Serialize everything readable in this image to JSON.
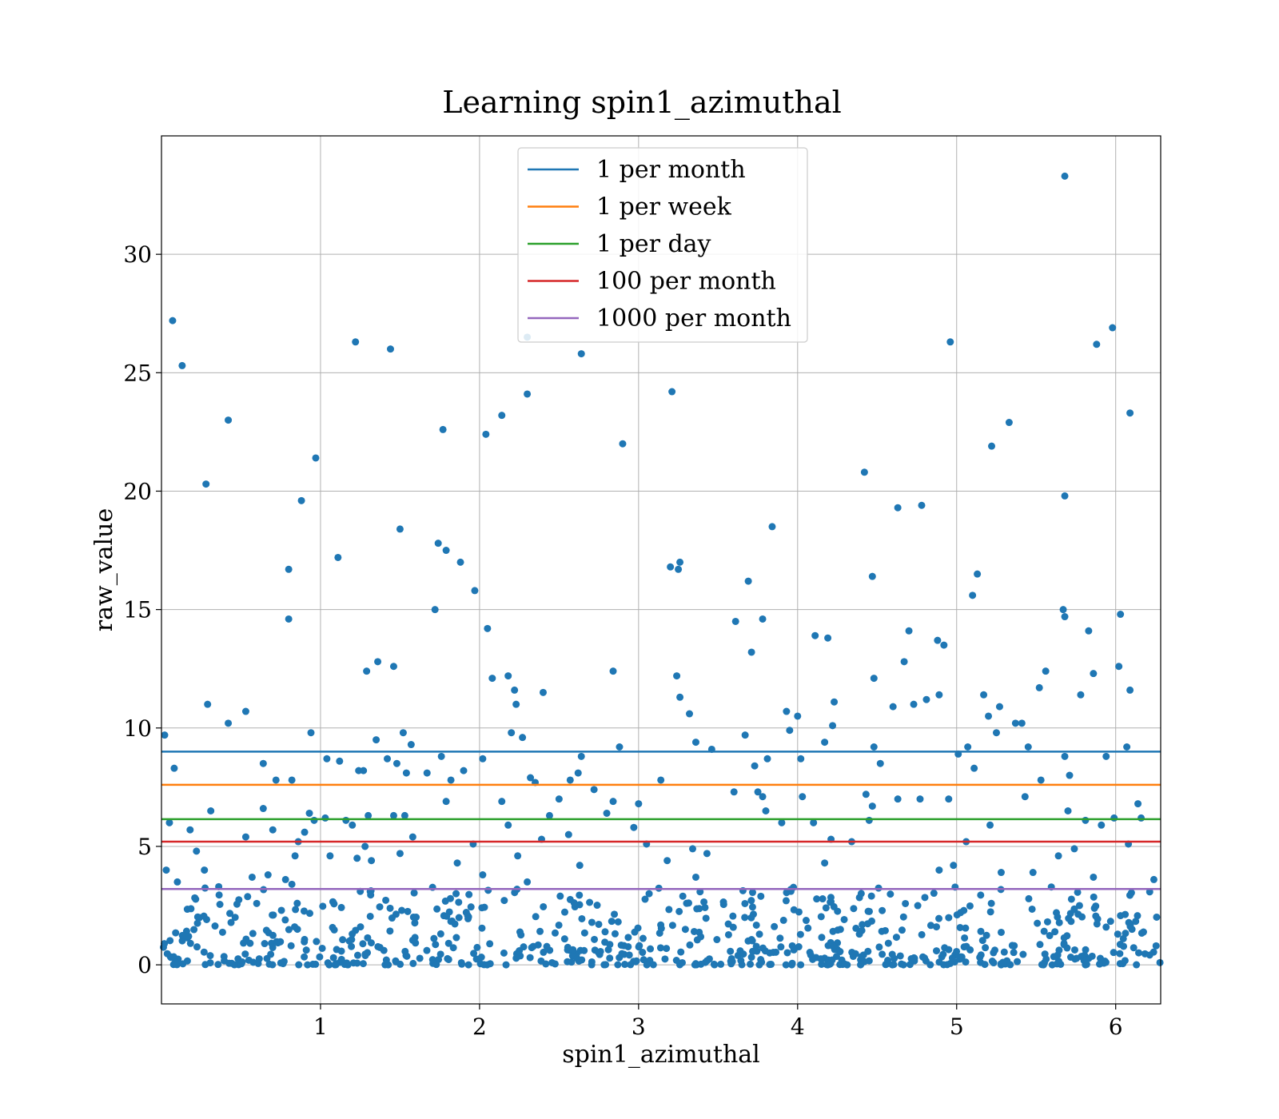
{
  "chart_data": {
    "type": "scatter",
    "title": "Learning spin1_azimuthal",
    "xlabel": "spin1_azimuthal",
    "ylabel": "raw_value",
    "xlim": [
      0.0,
      6.283
    ],
    "ylim": [
      -1.65,
      35.0
    ],
    "xticks": [
      1,
      2,
      3,
      4,
      5,
      6
    ],
    "yticks": [
      0,
      5,
      10,
      15,
      20,
      25,
      30
    ],
    "grid": true,
    "legend_position": "top-center",
    "point_color": "#1f77b4",
    "series": [
      {
        "name": "",
        "points": [
          [
            0.02,
            9.7
          ],
          [
            0.07,
            27.2
          ],
          [
            0.08,
            8.3
          ],
          [
            0.13,
            25.3
          ],
          [
            0.28,
            20.3
          ],
          [
            0.29,
            11.0
          ],
          [
            0.31,
            6.5
          ],
          [
            0.42,
            23.0
          ],
          [
            0.42,
            10.2
          ],
          [
            0.53,
            5.4
          ],
          [
            0.53,
            10.7
          ],
          [
            0.64,
            8.5
          ],
          [
            0.64,
            6.6
          ],
          [
            0.72,
            7.8
          ],
          [
            0.8,
            16.7
          ],
          [
            0.8,
            14.6
          ],
          [
            0.82,
            7.8
          ],
          [
            0.88,
            19.6
          ],
          [
            0.93,
            6.4
          ],
          [
            0.94,
            9.8
          ],
          [
            0.97,
            21.4
          ],
          [
            1.04,
            8.7
          ],
          [
            1.03,
            6.2
          ],
          [
            1.11,
            17.2
          ],
          [
            1.12,
            8.6
          ],
          [
            1.2,
            5.9
          ],
          [
            1.22,
            26.3
          ],
          [
            1.24,
            8.2
          ],
          [
            1.27,
            8.2
          ],
          [
            1.29,
            12.4
          ],
          [
            1.3,
            6.3
          ],
          [
            1.36,
            12.8
          ],
          [
            1.35,
            9.5
          ],
          [
            1.42,
            8.7
          ],
          [
            1.44,
            26.0
          ],
          [
            1.46,
            12.6
          ],
          [
            1.48,
            8.5
          ],
          [
            1.5,
            18.4
          ],
          [
            1.52,
            9.8
          ],
          [
            1.54,
            8.1
          ],
          [
            1.57,
            9.3
          ],
          [
            1.67,
            8.1
          ],
          [
            1.72,
            15.0
          ],
          [
            1.74,
            17.8
          ],
          [
            1.77,
            22.6
          ],
          [
            1.76,
            8.8
          ],
          [
            1.79,
            17.5
          ],
          [
            1.82,
            7.8
          ],
          [
            1.88,
            17.0
          ],
          [
            1.9,
            8.2
          ],
          [
            1.97,
            15.8
          ],
          [
            2.02,
            8.7
          ],
          [
            2.04,
            22.4
          ],
          [
            2.05,
            14.2
          ],
          [
            2.08,
            12.1
          ],
          [
            2.14,
            23.2
          ],
          [
            2.18,
            12.2
          ],
          [
            2.2,
            9.8
          ],
          [
            2.22,
            11.6
          ],
          [
            2.23,
            11.0
          ],
          [
            2.27,
            9.6
          ],
          [
            2.3,
            24.1
          ],
          [
            2.3,
            26.5
          ],
          [
            2.32,
            7.9
          ],
          [
            2.35,
            7.7
          ],
          [
            2.4,
            11.5
          ],
          [
            2.57,
            7.8
          ],
          [
            2.62,
            8.1
          ],
          [
            2.64,
            25.8
          ],
          [
            2.64,
            8.8
          ],
          [
            2.84,
            12.4
          ],
          [
            2.88,
            9.2
          ],
          [
            2.9,
            22.0
          ],
          [
            3.0,
            6.8
          ],
          [
            3.14,
            7.8
          ],
          [
            3.21,
            24.2
          ],
          [
            3.24,
            12.2
          ],
          [
            3.26,
            11.3
          ],
          [
            3.26,
            17.0
          ],
          [
            3.2,
            16.8
          ],
          [
            3.25,
            16.7
          ],
          [
            3.32,
            10.6
          ],
          [
            3.36,
            9.4
          ],
          [
            3.46,
            9.1
          ],
          [
            3.61,
            14.5
          ],
          [
            3.67,
            9.7
          ],
          [
            3.69,
            16.2
          ],
          [
            3.71,
            13.2
          ],
          [
            3.73,
            8.4
          ],
          [
            3.78,
            14.6
          ],
          [
            3.81,
            8.7
          ],
          [
            3.84,
            18.5
          ],
          [
            3.93,
            10.7
          ],
          [
            3.95,
            9.9
          ],
          [
            4.0,
            10.5
          ],
          [
            4.02,
            8.7
          ],
          [
            4.11,
            13.9
          ],
          [
            4.17,
            9.4
          ],
          [
            4.19,
            13.8
          ],
          [
            4.22,
            10.1
          ],
          [
            4.23,
            11.1
          ],
          [
            4.42,
            20.8
          ],
          [
            4.47,
            16.4
          ],
          [
            4.48,
            12.1
          ],
          [
            4.48,
            9.2
          ],
          [
            4.6,
            10.9
          ],
          [
            4.63,
            19.3
          ],
          [
            4.67,
            12.8
          ],
          [
            4.7,
            14.1
          ],
          [
            4.73,
            11.0
          ],
          [
            4.78,
            19.4
          ],
          [
            4.81,
            11.2
          ],
          [
            4.88,
            13.7
          ],
          [
            4.92,
            13.5
          ],
          [
            4.96,
            26.3
          ],
          [
            4.89,
            11.4
          ],
          [
            5.01,
            8.9
          ],
          [
            5.07,
            9.2
          ],
          [
            5.1,
            15.6
          ],
          [
            5.13,
            16.5
          ],
          [
            5.17,
            11.4
          ],
          [
            5.2,
            10.5
          ],
          [
            5.22,
            21.9
          ],
          [
            5.25,
            9.8
          ],
          [
            5.27,
            10.9
          ],
          [
            5.33,
            22.9
          ],
          [
            5.37,
            10.2
          ],
          [
            5.41,
            10.2
          ],
          [
            5.45,
            9.2
          ],
          [
            5.52,
            11.7
          ],
          [
            5.56,
            12.4
          ],
          [
            5.67,
            15.0
          ],
          [
            5.68,
            33.3
          ],
          [
            5.68,
            19.8
          ],
          [
            5.68,
            14.7
          ],
          [
            5.68,
            8.8
          ],
          [
            5.71,
            8.0
          ],
          [
            5.78,
            11.4
          ],
          [
            5.83,
            14.1
          ],
          [
            5.86,
            12.3
          ],
          [
            5.88,
            26.2
          ],
          [
            5.94,
            8.8
          ],
          [
            5.98,
            26.9
          ],
          [
            6.03,
            14.8
          ],
          [
            6.02,
            12.6
          ],
          [
            6.07,
            9.2
          ],
          [
            6.09,
            23.3
          ],
          [
            6.09,
            11.6
          ],
          [
            6.14,
            6.8
          ],
          [
            0.03,
            4.0
          ],
          [
            0.05,
            6.0
          ],
          [
            0.1,
            3.5
          ],
          [
            0.18,
            5.7
          ],
          [
            0.22,
            4.8
          ],
          [
            0.27,
            4.0
          ],
          [
            0.36,
            3.3
          ],
          [
            0.57,
            3.7
          ],
          [
            0.67,
            3.8
          ],
          [
            0.7,
            5.7
          ],
          [
            0.78,
            3.6
          ],
          [
            0.82,
            3.4
          ],
          [
            0.84,
            4.6
          ],
          [
            0.86,
            5.2
          ],
          [
            0.9,
            5.6
          ],
          [
            0.96,
            6.1
          ],
          [
            1.06,
            4.6
          ],
          [
            1.16,
            6.1
          ],
          [
            1.23,
            4.5
          ],
          [
            1.25,
            3.1
          ],
          [
            1.28,
            5.0
          ],
          [
            1.32,
            4.4
          ],
          [
            1.46,
            6.3
          ],
          [
            1.5,
            4.7
          ],
          [
            1.53,
            6.3
          ],
          [
            1.58,
            5.4
          ],
          [
            1.79,
            6.9
          ],
          [
            1.86,
            4.3
          ],
          [
            1.96,
            5.1
          ],
          [
            2.02,
            3.8
          ],
          [
            2.14,
            6.9
          ],
          [
            2.18,
            5.9
          ],
          [
            2.24,
            4.6
          ],
          [
            2.3,
            3.5
          ],
          [
            2.39,
            5.3
          ],
          [
            2.44,
            6.3
          ],
          [
            2.5,
            7.0
          ],
          [
            2.56,
            5.5
          ],
          [
            2.63,
            4.2
          ],
          [
            2.72,
            7.4
          ],
          [
            2.8,
            6.4
          ],
          [
            2.84,
            6.9
          ],
          [
            2.97,
            5.8
          ],
          [
            3.05,
            5.1
          ],
          [
            3.18,
            4.4
          ],
          [
            3.34,
            4.9
          ],
          [
            3.36,
            3.7
          ],
          [
            3.43,
            4.7
          ],
          [
            3.6,
            7.3
          ],
          [
            3.75,
            7.3
          ],
          [
            3.78,
            7.1
          ],
          [
            3.8,
            6.5
          ],
          [
            3.9,
            6.0
          ],
          [
            4.03,
            7.1
          ],
          [
            4.1,
            6.0
          ],
          [
            4.17,
            4.3
          ],
          [
            4.21,
            5.3
          ],
          [
            4.34,
            5.2
          ],
          [
            4.43,
            7.2
          ],
          [
            4.45,
            6.1
          ],
          [
            4.47,
            6.7
          ],
          [
            4.52,
            8.5
          ],
          [
            4.63,
            7.0
          ],
          [
            4.77,
            7.0
          ],
          [
            4.89,
            4.0
          ],
          [
            4.95,
            7.0
          ],
          [
            4.98,
            4.2
          ],
          [
            5.06,
            5.2
          ],
          [
            5.11,
            8.3
          ],
          [
            5.21,
            5.9
          ],
          [
            5.28,
            3.9
          ],
          [
            5.43,
            7.1
          ],
          [
            5.48,
            3.9
          ],
          [
            5.53,
            7.8
          ],
          [
            5.64,
            4.6
          ],
          [
            5.7,
            6.5
          ],
          [
            5.74,
            4.9
          ],
          [
            5.81,
            6.1
          ],
          [
            5.86,
            3.7
          ],
          [
            5.91,
            5.9
          ],
          [
            5.99,
            6.2
          ],
          [
            6.08,
            5.1
          ],
          [
            6.16,
            6.2
          ],
          [
            6.24,
            3.6
          ]
        ]
      }
    ],
    "cluster_band_estimate": {
      "description": "",
      "count": 700,
      "y_range": [
        0.0,
        3.3
      ]
    },
    "reference_lines": [
      {
        "name": "1 per month",
        "y": 9.0,
        "color": "#1f77b4"
      },
      {
        "name": "1 per week",
        "y": 7.6,
        "color": "#ff7f0e"
      },
      {
        "name": "1 per day",
        "y": 6.15,
        "color": "#2ca02c"
      },
      {
        "name": "100 per month",
        "y": 5.2,
        "color": "#d62728"
      },
      {
        "name": "1000 per month",
        "y": 3.2,
        "color": "#9467bd"
      }
    ]
  }
}
